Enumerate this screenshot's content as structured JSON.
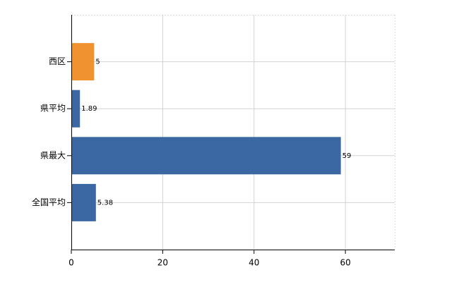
{
  "chart_data": {
    "type": "hbar",
    "categories": [
      "西区",
      "県平均",
      "県最大",
      "全国平均"
    ],
    "values": [
      5,
      1.89,
      59,
      5.38
    ],
    "colors": [
      "#f0922f",
      "#3b67a3",
      "#3b67a3",
      "#3b67a3"
    ],
    "xlim": [
      0,
      70.8
    ],
    "xticks": [
      0,
      20,
      40,
      60
    ],
    "grid": true
  }
}
